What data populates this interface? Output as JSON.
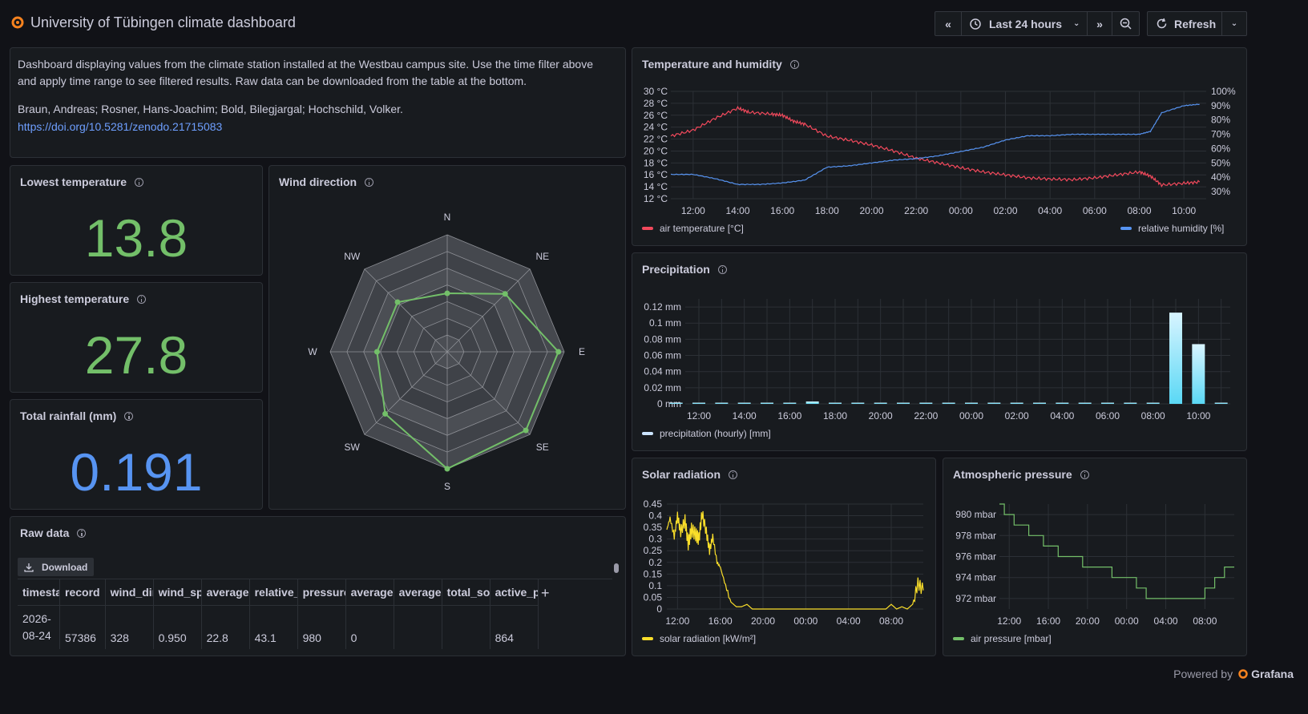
{
  "header": {
    "title": "University of Tübingen climate dashboard",
    "time_range": "Last 24 hours",
    "refresh_label": "Refresh"
  },
  "description": {
    "text": "Dashboard displaying values from the climate station installed at the Westbau campus site. Use the time filter above and apply time range to see filtered results. Raw data can be downloaded from the table at the bottom.",
    "authors": "Braun, Andreas; Rosner, Hans-Joachim; Bold, Bilegjargal; Hochschild, Volker.",
    "doi": "https://doi.org/10.5281/zenodo.21715083"
  },
  "stats": {
    "lowest": {
      "title": "Lowest temperature",
      "value": "13.8",
      "color": "#73bf69"
    },
    "highest": {
      "title": "Highest temperature",
      "value": "27.8",
      "color": "#73bf69"
    },
    "rainfall": {
      "title": "Total rainfall (mm)",
      "value": "0.191",
      "color": "#5794f2"
    }
  },
  "panels": {
    "wind": "Wind direction",
    "temp_hum": "Temperature and humidity",
    "precip": "Precipitation",
    "solar": "Solar radiation",
    "pressure": "Atmospheric pressure",
    "raw": "Raw data"
  },
  "raw_data": {
    "download_label": "Download",
    "columns": [
      "timestamp",
      "record",
      "wind_dir",
      "wind_sp",
      "average",
      "relative_",
      "pressure",
      "average",
      "average",
      "total_so",
      "active_p"
    ],
    "row": [
      "2026-08-24",
      "57386",
      "328",
      "0.950",
      "22.8",
      "43.1",
      "980",
      "0",
      "",
      "",
      "864"
    ]
  },
  "footer": {
    "powered_by": "Powered by",
    "brand": "Grafana"
  },
  "chart_data": [
    {
      "type": "line",
      "title": "Temperature and humidity",
      "x_ticks": [
        "12:00",
        "14:00",
        "16:00",
        "18:00",
        "20:00",
        "22:00",
        "00:00",
        "02:00",
        "04:00",
        "06:00",
        "08:00",
        "10:00"
      ],
      "y_left_ticks": [
        "12 °C",
        "14 °C",
        "16 °C",
        "18 °C",
        "20 °C",
        "22 °C",
        "24 °C",
        "26 °C",
        "28 °C",
        "30 °C"
      ],
      "y_right_ticks": [
        "30%",
        "40%",
        "50%",
        "60%",
        "70%",
        "80%",
        "90%",
        "100%"
      ],
      "ylim_left": [
        12,
        30
      ],
      "ylim_right": [
        25,
        100
      ],
      "legend_placement": "bottom",
      "series": [
        {
          "name": "air temperature [°C]",
          "color": "#f2495c",
          "axis": "left",
          "x": [
            11.0,
            12.0,
            13.0,
            14.0,
            14.5,
            15.5,
            16.0,
            16.5,
            17.0,
            18.0,
            19.0,
            20.0,
            21.0,
            22.0,
            23.0,
            24.0,
            25.0,
            26.0,
            27.0,
            28.0,
            29.0,
            30.0,
            31.0,
            32.0,
            32.5,
            33.0,
            34.0,
            34.7
          ],
          "values": [
            22.5,
            23.5,
            25.5,
            27.2,
            26.5,
            26.2,
            26.0,
            25.0,
            24.5,
            22.5,
            21.8,
            21.0,
            20.0,
            18.8,
            18.0,
            17.2,
            16.5,
            16.0,
            15.5,
            15.3,
            15.2,
            15.5,
            16.0,
            16.5,
            15.8,
            14.3,
            14.6,
            14.8
          ]
        },
        {
          "name": "relative humidity [%]",
          "color": "#5794f2",
          "axis": "right",
          "x": [
            11.0,
            12.0,
            13.0,
            14.0,
            15.0,
            16.0,
            17.0,
            18.0,
            19.0,
            20.0,
            21.0,
            22.0,
            23.0,
            24.0,
            25.0,
            26.0,
            27.0,
            28.0,
            29.0,
            30.0,
            31.0,
            32.0,
            32.5,
            33.0,
            34.0,
            34.7
          ],
          "values": [
            42,
            42,
            39,
            35,
            35,
            36,
            38,
            47,
            48,
            50,
            52,
            53,
            55,
            58,
            61,
            66,
            69,
            69,
            70,
            70,
            70,
            70,
            72,
            85,
            90,
            91
          ]
        }
      ]
    },
    {
      "type": "bar",
      "title": "Precipitation",
      "x_ticks": [
        "12:00",
        "14:00",
        "16:00",
        "18:00",
        "20:00",
        "22:00",
        "00:00",
        "02:00",
        "04:00",
        "06:00",
        "08:00",
        "10:00"
      ],
      "y_ticks": [
        "0 mm",
        "0.02 mm",
        "0.04 mm",
        "0.06 mm",
        "0.08 mm",
        "0.1 mm",
        "0.12 mm"
      ],
      "ylim": [
        0,
        0.13
      ],
      "legend_placement": "bottom",
      "series": [
        {
          "name": "precipitation (hourly) [mm]",
          "color": "#8ab8ff",
          "x": [
            11,
            12,
            13,
            14,
            15,
            16,
            17,
            18,
            19,
            20,
            21,
            22,
            23,
            24,
            25,
            26,
            27,
            28,
            29,
            30,
            31,
            32,
            33,
            34,
            35
          ],
          "values": [
            0,
            0,
            0,
            0,
            0,
            0,
            0.003,
            0,
            0,
            0,
            0,
            0,
            0,
            0,
            0,
            0,
            0,
            0,
            0,
            0,
            0,
            0,
            0.113,
            0.074,
            0
          ]
        }
      ]
    },
    {
      "type": "line",
      "title": "Solar radiation",
      "x_ticks": [
        "12:00",
        "16:00",
        "20:00",
        "00:00",
        "04:00",
        "08:00"
      ],
      "y_ticks": [
        "0",
        "0.05",
        "0.1",
        "0.15",
        "0.2",
        "0.25",
        "0.3",
        "0.35",
        "0.4",
        "0.45"
      ],
      "ylim": [
        0,
        0.45
      ],
      "legend_placement": "bottom",
      "series": [
        {
          "name": "solar radiation [kW/m²]",
          "color": "#fade2a",
          "x": [
            11.0,
            11.3,
            11.7,
            12.0,
            12.3,
            12.7,
            13.0,
            13.3,
            13.7,
            14.0,
            14.3,
            14.7,
            15.0,
            15.3,
            15.7,
            16.0,
            16.5,
            17.0,
            17.5,
            18.0,
            18.5,
            19.0,
            19.5,
            20.0,
            22.0,
            24.0,
            26.0,
            28.0,
            30.0,
            31.5,
            32.0,
            32.5,
            33.0,
            33.5,
            34.0,
            34.5,
            35.0
          ],
          "values": [
            0.34,
            0.39,
            0.31,
            0.4,
            0.33,
            0.38,
            0.28,
            0.34,
            0.32,
            0.3,
            0.41,
            0.33,
            0.25,
            0.31,
            0.2,
            0.18,
            0.1,
            0.03,
            0.01,
            0.01,
            0.02,
            0.0,
            0.0,
            0.0,
            0.0,
            0.0,
            0.0,
            0.0,
            0.0,
            0.0,
            0.02,
            0.0,
            0.01,
            0.0,
            0.02,
            0.11,
            0.08
          ]
        }
      ]
    },
    {
      "type": "line",
      "title": "Atmospheric pressure",
      "x_ticks": [
        "12:00",
        "16:00",
        "20:00",
        "00:00",
        "04:00",
        "08:00"
      ],
      "y_ticks": [
        "972 mbar",
        "974 mbar",
        "976 mbar",
        "978 mbar",
        "980 mbar"
      ],
      "ylim": [
        971,
        981
      ],
      "legend_placement": "bottom",
      "series": [
        {
          "name": "air pressure [mbar]",
          "color": "#73bf69",
          "x": [
            11.0,
            11.5,
            12.5,
            14.0,
            15.5,
            17.0,
            19.5,
            21.5,
            22.5,
            24.0,
            25.0,
            26.0,
            27.0,
            28.0,
            29.0,
            31.0,
            32.0,
            33.0,
            34.0,
            35.0
          ],
          "values": [
            981,
            980,
            979,
            978,
            977,
            976,
            975,
            975,
            974,
            974,
            973,
            972,
            972,
            972,
            972,
            972,
            973,
            974,
            975,
            975
          ]
        }
      ]
    },
    {
      "type": "radar",
      "title": "Wind direction",
      "categories": [
        "N",
        "NE",
        "E",
        "SE",
        "S",
        "SW",
        "W",
        "NW"
      ],
      "values": [
        0.5,
        0.7,
        0.95,
        0.95,
        1.0,
        0.75,
        0.6,
        0.6
      ],
      "rlim": [
        0,
        1
      ],
      "color": "#73bf69"
    }
  ]
}
